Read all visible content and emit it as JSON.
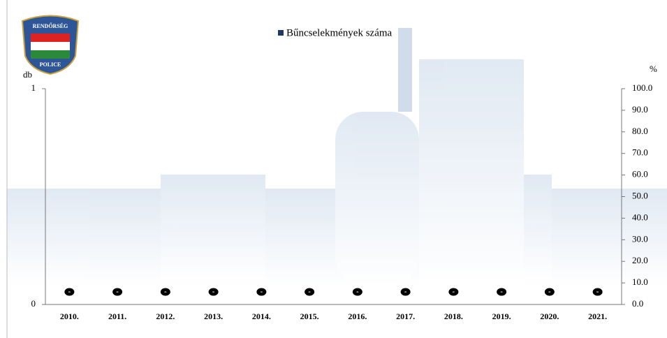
{
  "chart_data": {
    "type": "bar",
    "categories": [
      "2010.",
      "2011.",
      "2012.",
      "2013.",
      "2014.",
      "2015.",
      "2016.",
      "2017.",
      "2018.",
      "2019.",
      "2020.",
      "2021."
    ],
    "series": [
      {
        "name": "Bűncselekmények száma",
        "color": "#1f3864",
        "values": [
          0,
          0,
          0,
          0,
          0,
          0,
          0,
          0,
          0,
          0,
          0,
          0
        ],
        "value_labels": [
          "-",
          "-",
          "-",
          "-",
          "-",
          "-",
          "-",
          "-",
          "-",
          "-",
          "-",
          "-"
        ]
      }
    ],
    "y_label": "db",
    "y2_label": "%",
    "ylim": [
      0,
      1
    ],
    "yticks": [
      0,
      1
    ],
    "y2lim": [
      0,
      100
    ],
    "y2ticks": [
      {
        "value": 0,
        "label": "0.0"
      },
      {
        "value": 10,
        "label": "10.0"
      },
      {
        "value": 20,
        "label": "20.0"
      },
      {
        "value": 30,
        "label": "30.0"
      },
      {
        "value": 40,
        "label": "40.0"
      },
      {
        "value": 50,
        "label": "50.0"
      },
      {
        "value": 60,
        "label": "60.0"
      },
      {
        "value": 70,
        "label": "70.0"
      },
      {
        "value": 80,
        "label": "80.0"
      },
      {
        "value": 90,
        "label": "90.0"
      },
      {
        "value": 100,
        "label": "100.0"
      }
    ],
    "legend": "top",
    "grid": false,
    "annotations": [
      "RENDŐRSÉG",
      "POLICE"
    ]
  }
}
